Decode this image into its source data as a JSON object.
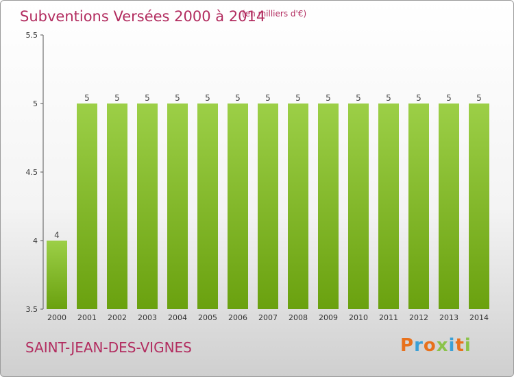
{
  "chart_data": {
    "type": "bar",
    "title": "Subventions Versées 2000 à 2014",
    "subtitle": "(en milliers d'€)",
    "categories": [
      "2000",
      "2001",
      "2002",
      "2003",
      "2004",
      "2005",
      "2006",
      "2007",
      "2008",
      "2009",
      "2010",
      "2011",
      "2012",
      "2013",
      "2014"
    ],
    "values": [
      4,
      5,
      5,
      5,
      5,
      5,
      5,
      5,
      5,
      5,
      5,
      5,
      5,
      5,
      5
    ],
    "data_labels": [
      "4",
      "5",
      "5",
      "5",
      "5",
      "5",
      "5",
      "5",
      "5",
      "5",
      "5",
      "5",
      "5",
      "5",
      "5"
    ],
    "ylim": [
      3.5,
      5.5
    ],
    "yticks": [
      "3.5",
      "4",
      "4.5",
      "5",
      "5.5"
    ],
    "grid": false,
    "colors": {
      "bar_top": "#9ccf47",
      "bar_bottom": "#6aa10f",
      "title": "#b22c5f"
    }
  },
  "footer": {
    "commune": "SAINT-JEAN-DES-VIGNES",
    "logo": "Proxiti",
    "logo_colors": [
      "#e8711c",
      "#3aa0d6",
      "#e8711c",
      "#8bc34a",
      "#3aa0d6",
      "#e8711c",
      "#8bc34a"
    ]
  }
}
